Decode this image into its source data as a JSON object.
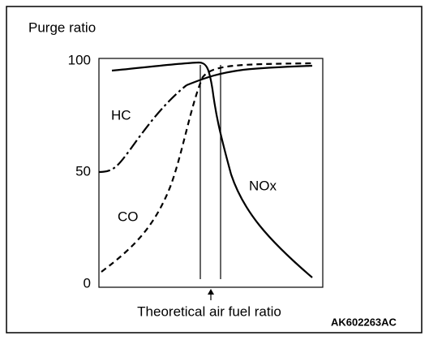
{
  "axis": {
    "label": "Purge ratio",
    "ticks": [
      "100",
      "50",
      "0"
    ],
    "x_label": "Theoretical air fuel ratio"
  },
  "curves": {
    "hc": "HC",
    "co": "CO",
    "nox": "NOx"
  },
  "code": "AK602263AC"
}
